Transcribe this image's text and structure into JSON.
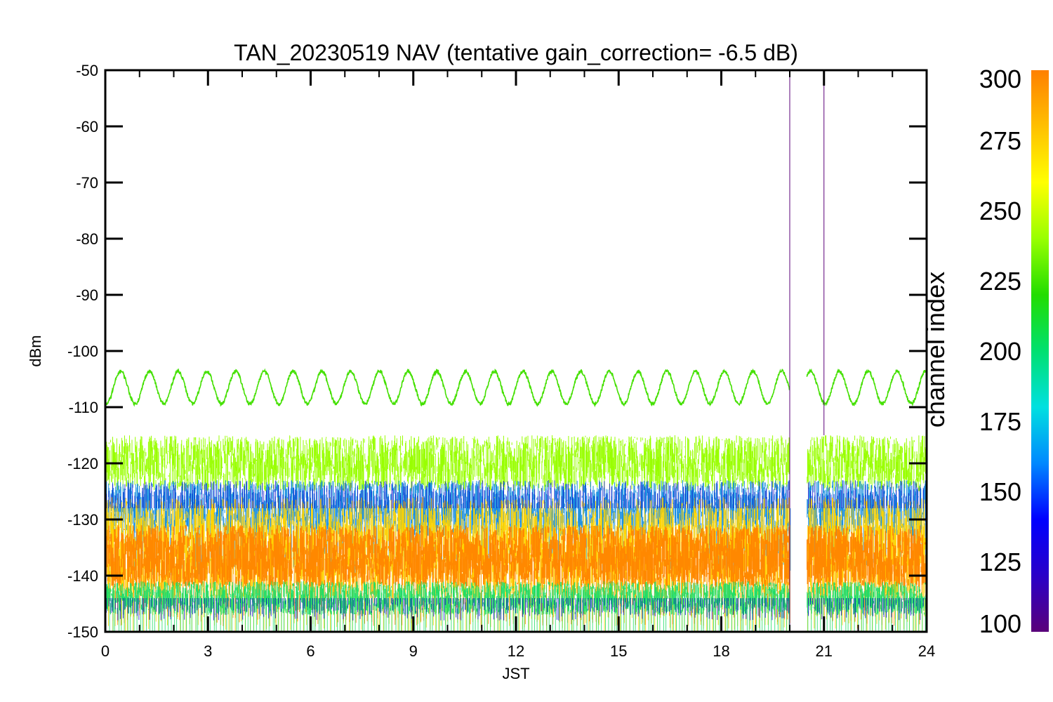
{
  "chart_data": {
    "type": "line",
    "title": "TAN_20230519 NAV (tentative gain_correction= -6.5 dB)",
    "xlabel": "JST",
    "ylabel": "dBm",
    "xlim": [
      0,
      24
    ],
    "ylim": [
      -150,
      -50
    ],
    "x_ticks": [
      "0",
      "3",
      "6",
      "9",
      "12",
      "15",
      "18",
      "21",
      "24"
    ],
    "y_ticks": [
      "-50",
      "-60",
      "-70",
      "-80",
      "-90",
      "-100",
      "-110",
      "-120",
      "-130",
      "-140",
      "-150"
    ],
    "grid": false,
    "data_gap_hours": [
      20.0,
      20.5
    ],
    "series": [
      {
        "color": "#44e000",
        "style": "sinusoid",
        "center_dbm": -106.5,
        "amplitude_db": 2.9,
        "period_hours": 0.84
      },
      {
        "color": "#99ff00",
        "style": "noise band",
        "center_dbm": -120,
        "range_dbm": [
          -125,
          -115
        ]
      },
      {
        "color": "#1a8fe0",
        "style": "noise band",
        "center_dbm": -128,
        "range_dbm": [
          -133,
          -123
        ]
      },
      {
        "color": "#ffd400",
        "style": "noise band",
        "center_dbm": -131,
        "range_dbm": [
          -144,
          -126
        ]
      },
      {
        "color": "#ff8800",
        "style": "noise band",
        "center_dbm": -137,
        "range_dbm": [
          -142,
          -131
        ]
      },
      {
        "color": "#22dd66",
        "style": "noise band",
        "center_dbm": -144,
        "range_dbm": [
          -147,
          -141
        ]
      }
    ],
    "colorbar": {
      "label": "channel index",
      "ticks": [
        "300",
        "275",
        "250",
        "225",
        "200",
        "175",
        "150",
        "125",
        "100"
      ],
      "range": [
        100,
        300
      ],
      "colors": [
        "#5a007a",
        "#2a00c8",
        "#0000ff",
        "#0088ff",
        "#00e0e0",
        "#00e070",
        "#22dd00",
        "#99ff00",
        "#ffff00",
        "#ffc000",
        "#ff8000"
      ]
    }
  }
}
